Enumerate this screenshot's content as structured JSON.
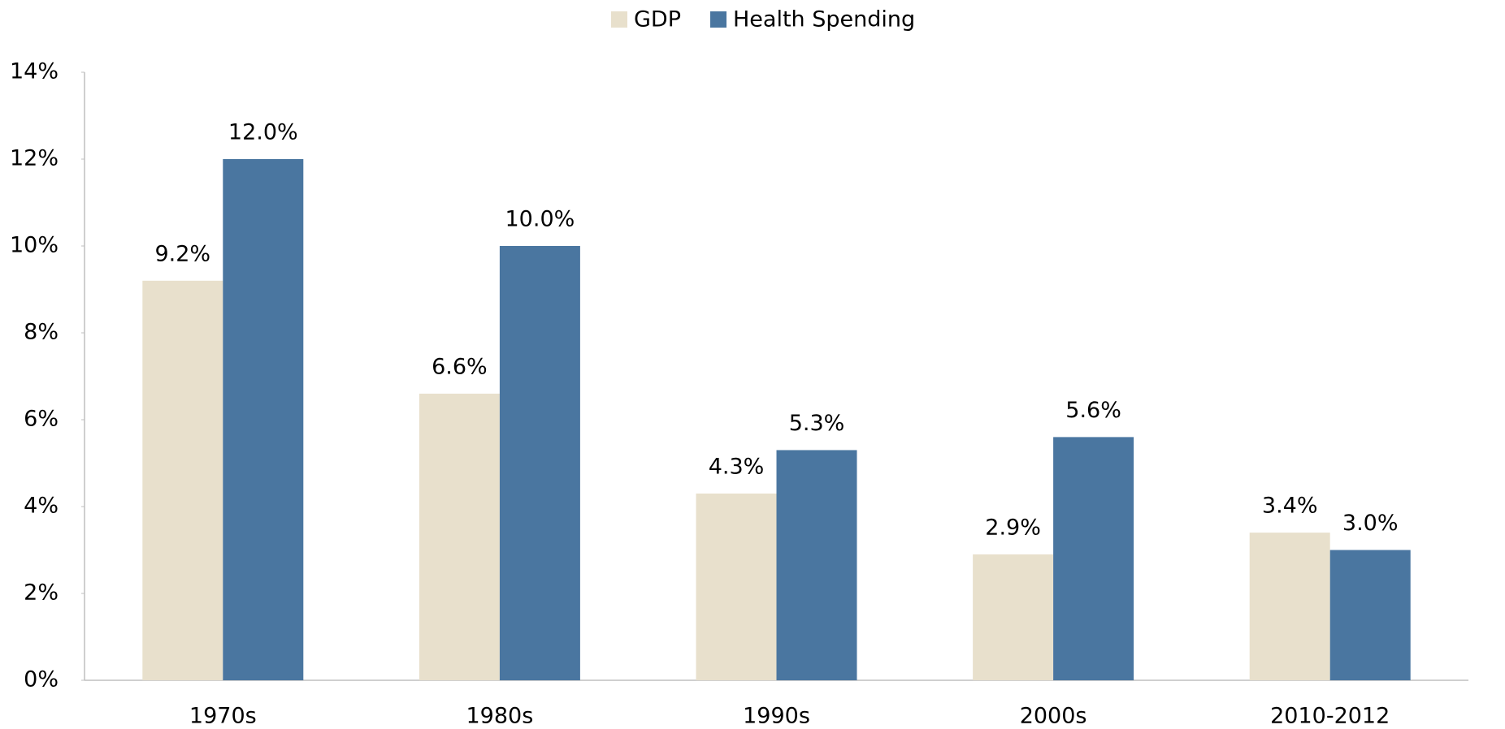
{
  "chart_data": {
    "type": "bar",
    "categories": [
      "1970s",
      "1980s",
      "1990s",
      "2000s",
      "2010-2012"
    ],
    "series": [
      {
        "name": "GDP",
        "color": "#e8e0cc",
        "values": [
          9.2,
          6.6,
          4.3,
          2.9,
          3.4
        ],
        "value_labels": [
          "9.2%",
          "6.6%",
          "4.3%",
          "2.9%",
          "3.4%"
        ]
      },
      {
        "name": "Health Spending",
        "color": "#4a76a0",
        "values": [
          12.0,
          10.0,
          5.3,
          5.6,
          3.0
        ],
        "value_labels": [
          "12.0%",
          "10.0%",
          "5.3%",
          "5.6%",
          "3.0%"
        ]
      }
    ],
    "ylim": [
      0,
      14
    ],
    "yticks": [
      {
        "value": 0,
        "label": "0%"
      },
      {
        "value": 2,
        "label": "2%"
      },
      {
        "value": 4,
        "label": "4%"
      },
      {
        "value": 6,
        "label": "6%"
      },
      {
        "value": 8,
        "label": "8%"
      },
      {
        "value": 10,
        "label": "10%"
      },
      {
        "value": 12,
        "label": "12%"
      },
      {
        "value": 14,
        "label": "14%"
      }
    ],
    "grid": false,
    "legend": "top"
  }
}
